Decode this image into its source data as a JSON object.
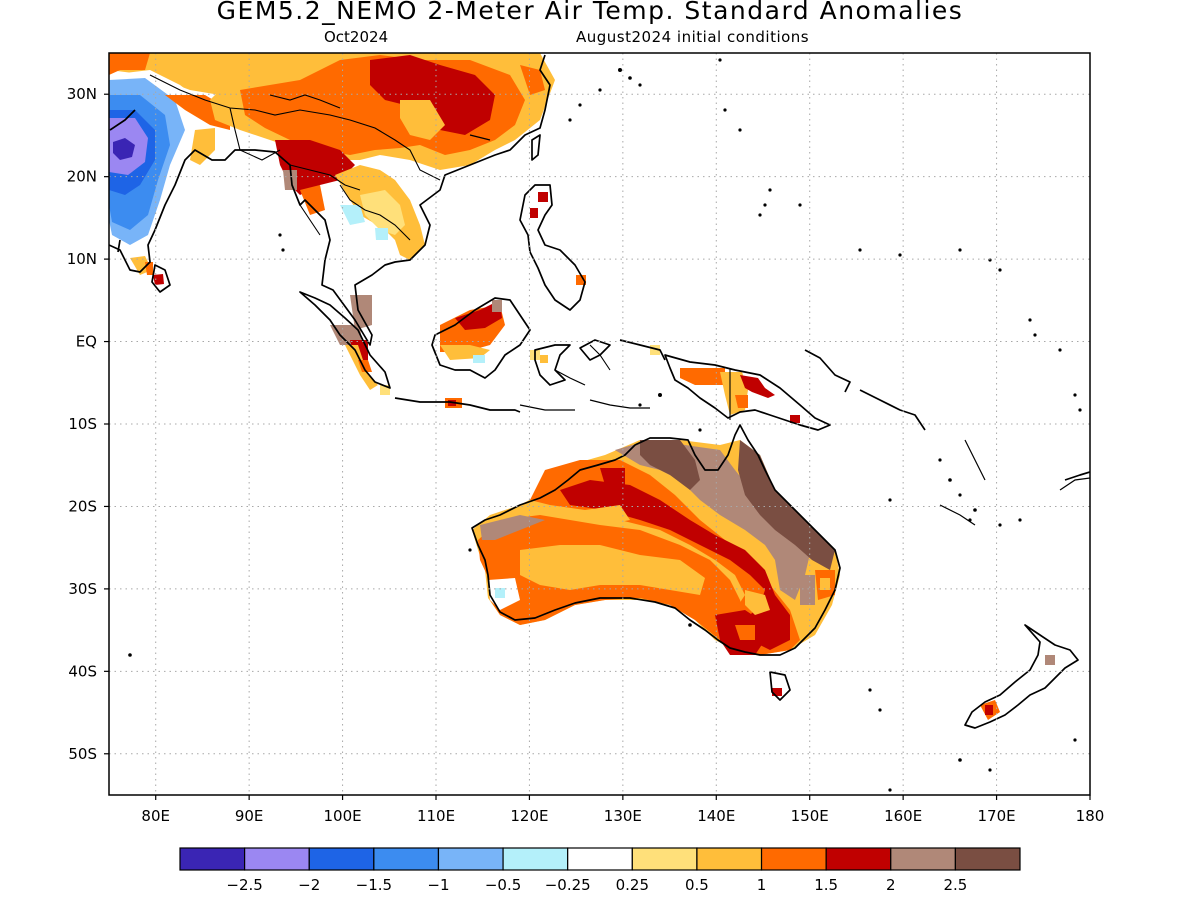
{
  "header": {
    "title": "GEM5.2_NEMO 2-Meter Air Temp. Standard Anomalies",
    "valid_month": "Oct2024",
    "init": "August2024 initial conditions"
  },
  "map": {
    "projection": "cylindrical equidistant",
    "lon_range": [
      75,
      180
    ],
    "lat_range": [
      -55,
      35
    ],
    "grid": "dotted",
    "lat_ticks": [
      {
        "lat": 30,
        "label": "30N"
      },
      {
        "lat": 20,
        "label": "20N"
      },
      {
        "lat": 10,
        "label": "10N"
      },
      {
        "lat": 0,
        "label": "EQ"
      },
      {
        "lat": -10,
        "label": "10S"
      },
      {
        "lat": -20,
        "label": "20S"
      },
      {
        "lat": -30,
        "label": "30S"
      },
      {
        "lat": -40,
        "label": "40S"
      },
      {
        "lat": -50,
        "label": "50S"
      }
    ],
    "lon_ticks": [
      {
        "lon": 80,
        "label": "80E"
      },
      {
        "lon": 90,
        "label": "90E"
      },
      {
        "lon": 100,
        "label": "100E"
      },
      {
        "lon": 110,
        "label": "110E"
      },
      {
        "lon": 120,
        "label": "120E"
      },
      {
        "lon": 130,
        "label": "130E"
      },
      {
        "lon": 140,
        "label": "140E"
      },
      {
        "lon": 150,
        "label": "150E"
      },
      {
        "lon": 160,
        "label": "160E"
      },
      {
        "lon": 170,
        "label": "170E"
      },
      {
        "lon": 180,
        "label": "180"
      }
    ]
  },
  "colorbar": {
    "colors": [
      "#3a25b4",
      "#9b87f2",
      "#1e64e6",
      "#3c8cf0",
      "#78b4f8",
      "#b4f0fa",
      "#ffffff",
      "#ffe07a",
      "#ffbe3a",
      "#ff6a00",
      "#c00000",
      "#b08878",
      "#7a4e42"
    ],
    "labels": [
      "-2.5",
      "-2",
      "-1.5",
      "-1",
      "-0.5",
      "-0.25",
      "0.25",
      "0.5",
      "1",
      "1.5",
      "2",
      "2.5"
    ]
  }
}
